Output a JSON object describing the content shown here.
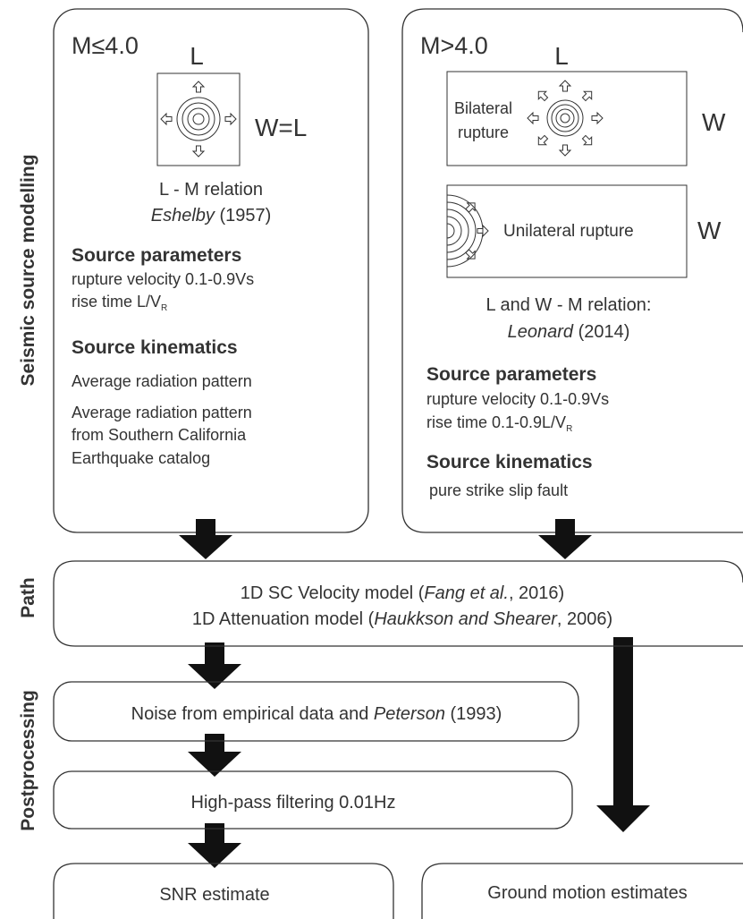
{
  "sections": {
    "source": "Seismic source modelling",
    "path": "Path",
    "post": "Postprocessing"
  },
  "small": {
    "title": "M≤4.0",
    "length": "L",
    "width": "W=L",
    "relation": "L - M relation",
    "author": "Eshelby",
    "year": "(1957)",
    "params_title": "Source parameters",
    "velocity": "rupture velocity 0.1-0.9Vs",
    "rise": "rise time L/V",
    "rise_sub": "R",
    "kin_title": "Source kinematics",
    "kin": [
      "Average radiation pattern",
      "Average radiation pattern",
      "from Southern California",
      "Earthquake catalog"
    ]
  },
  "large": {
    "title": "M>4.0",
    "length": "L",
    "width_1": "W",
    "width_2": "W",
    "bilateral": [
      "Bilateral",
      "rupture"
    ],
    "unilateral": "Unilateral rupture",
    "relation": "L and W - M relation:",
    "author": "Leonard",
    "year": "(2014)",
    "params_title": "Source parameters",
    "velocity": "rupture velocity 0.1-0.9Vs",
    "rise": "rise time 0.1-0.9L/V",
    "rise_sub": "R",
    "kin_title": "Source kinematics",
    "kin": "pure strike slip fault"
  },
  "path_box": {
    "line1": [
      "1D SC Velocity model (",
      "Fang et al.",
      ", 2016)"
    ],
    "line2": [
      "1D Attenuation model (",
      "Haukkson and Shearer",
      ", 2006)"
    ]
  },
  "noise": [
    "Noise from empirical data and ",
    "Peterson",
    " (1993)"
  ],
  "filter": "High-pass filtering 0.01Hz",
  "snr": "SNR estimate",
  "ground": "Ground motion estimates"
}
